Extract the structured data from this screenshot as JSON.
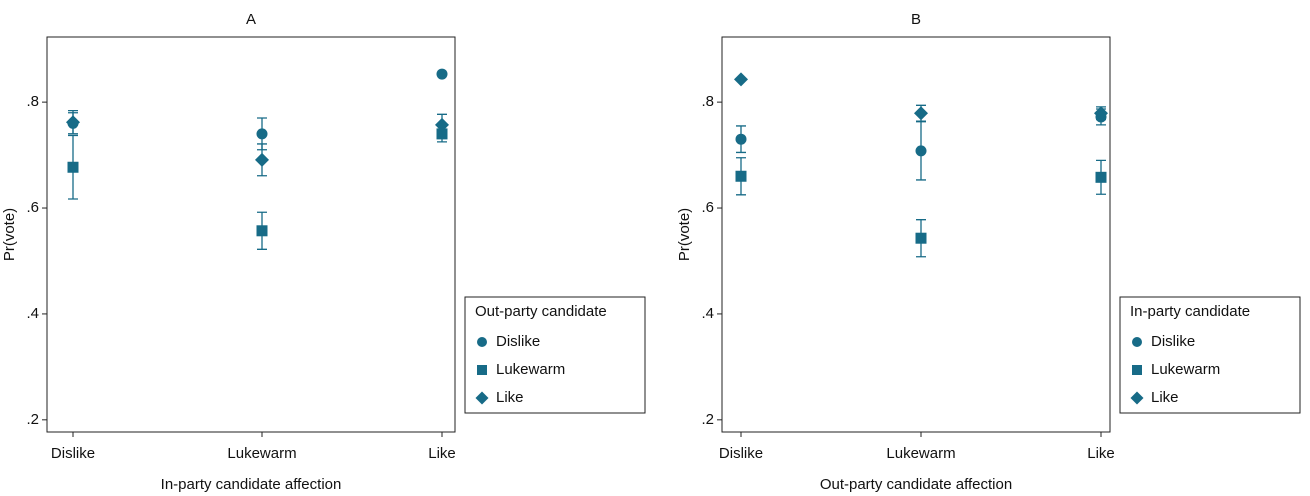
{
  "chart_data": [
    {
      "type": "scatter",
      "title": "A",
      "xlabel": "In-party candidate affection",
      "ylabel": "Pr(vote)",
      "categories": [
        "Dislike",
        "Lukewarm",
        "Like"
      ],
      "ylim": [
        0.177,
        0.923
      ],
      "yticks": [
        {
          "value": 0.2,
          "label": ".2"
        },
        {
          "value": 0.4,
          "label": ".4"
        },
        {
          "value": 0.6,
          "label": ".6"
        },
        {
          "value": 0.8,
          "label": ".8"
        }
      ],
      "legend_title": "Out-party candidate",
      "series": [
        {
          "name": "Dislike",
          "marker": "circle",
          "color": "#176b87",
          "values": [
            0.76,
            0.74,
            0.853
          ],
          "errors": [
            0.02,
            0.03,
            0.0
          ]
        },
        {
          "name": "Lukewarm",
          "marker": "square",
          "color": "#176b87",
          "values": [
            0.677,
            0.557,
            0.74
          ],
          "errors": [
            0.06,
            0.035,
            0.015
          ]
        },
        {
          "name": "Like",
          "marker": "diamond",
          "color": "#176b87",
          "values": [
            0.762,
            0.691,
            0.757
          ],
          "errors": [
            0.022,
            0.03,
            0.02
          ]
        }
      ]
    },
    {
      "type": "scatter",
      "title": "B",
      "xlabel": "Out-party candidate affection",
      "ylabel": "Pr(vote)",
      "categories": [
        "Dislike",
        "Lukewarm",
        "Like"
      ],
      "ylim": [
        0.177,
        0.923
      ],
      "yticks": [
        {
          "value": 0.2,
          "label": ".2"
        },
        {
          "value": 0.4,
          "label": ".4"
        },
        {
          "value": 0.6,
          "label": ".6"
        },
        {
          "value": 0.8,
          "label": ".8"
        }
      ],
      "legend_title": "In-party candidate",
      "series": [
        {
          "name": "Dislike",
          "marker": "circle",
          "color": "#176b87",
          "values": [
            0.73,
            0.708,
            0.772
          ],
          "errors": [
            0.025,
            0.055,
            0.015
          ]
        },
        {
          "name": "Lukewarm",
          "marker": "square",
          "color": "#176b87",
          "values": [
            0.66,
            0.543,
            0.658
          ],
          "errors": [
            0.035,
            0.035,
            0.032
          ]
        },
        {
          "name": "Like",
          "marker": "diamond",
          "color": "#176b87",
          "values": [
            0.843,
            0.779,
            0.779
          ],
          "errors": [
            0.0,
            0.015,
            0.012
          ]
        }
      ]
    }
  ]
}
